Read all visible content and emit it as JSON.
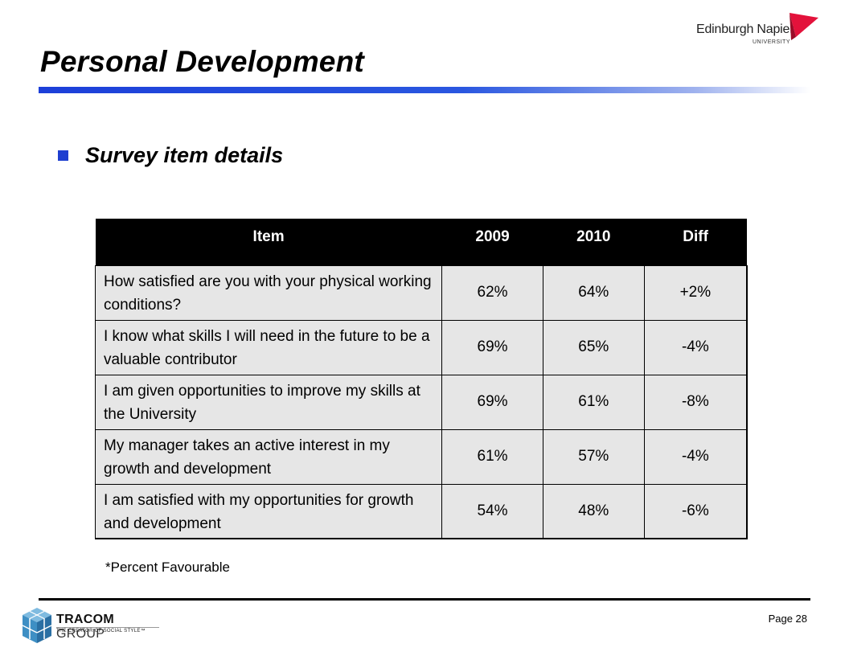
{
  "title": "Personal Development",
  "subtitle": "Survey item details",
  "university_logo": {
    "name": "Edinburgh Napier",
    "sub": "UNIVERSITY",
    "accent_color": "#e3123b"
  },
  "table": {
    "headers": [
      "Item",
      "2009",
      "2010",
      "Diff"
    ],
    "rows": [
      {
        "item": "How satisfied are you with your physical working conditions?",
        "y2009": "62%",
        "y2010": "64%",
        "diff": "+2%"
      },
      {
        "item": "I know what skills I will need in the future to be a valuable contributor",
        "y2009": "69%",
        "y2010": "65%",
        "diff": "-4%"
      },
      {
        "item": "I am given opportunities to improve my skills at the University",
        "y2009": "69%",
        "y2010": "61%",
        "diff": "-8%"
      },
      {
        "item": "My manager takes an active interest in my growth and development",
        "y2009": "61%",
        "y2010": "57%",
        "diff": "-4%"
      },
      {
        "item": "I am satisfied with my opportunities for growth and development",
        "y2009": "54%",
        "y2010": "48%",
        "diff": "-6%"
      }
    ]
  },
  "footnote": "*Percent Favourable",
  "page": "Page 28",
  "tracom_logo": {
    "name_bold": "TRACOM",
    "name_thin": "GROUP",
    "tagline": "THE CREATOR OF SOCIAL STYLE™",
    "cube_color": "#3e8fc4"
  },
  "colors": {
    "title_rule": "#1c3fd9",
    "bullet": "#1f3fd0",
    "header_bg": "#000000",
    "row_bg": "#e6e6e6"
  }
}
